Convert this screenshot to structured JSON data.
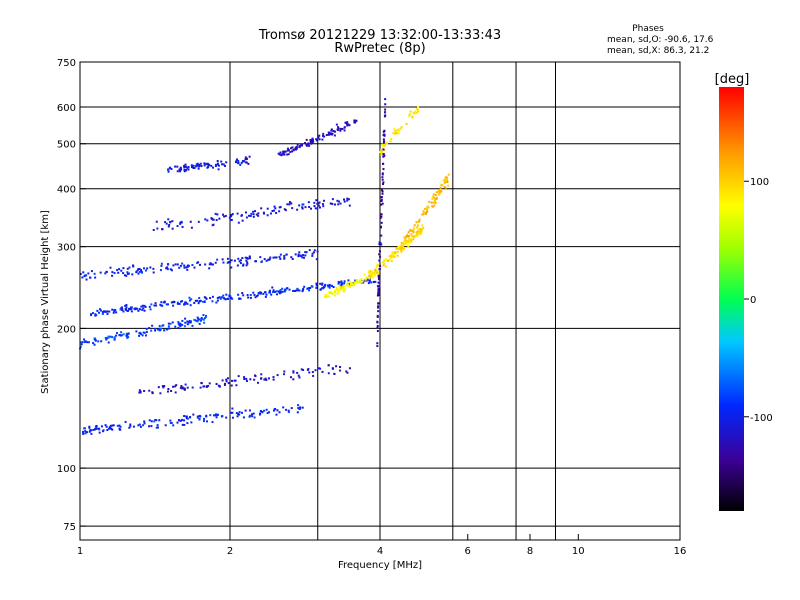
{
  "chart_data": {
    "type": "scatter",
    "title": "Tromsø 20121229 13:32:00-13:33:43",
    "subtitle": "RwPretec (8p)",
    "xlabel": "Frequency [MHz]",
    "ylabel": "Stationary phase Virtual Height [km]",
    "x_scale": "log",
    "y_scale": "log",
    "xlim": [
      1,
      16
    ],
    "ylim": [
      70,
      750
    ],
    "x_ticks": [
      1,
      2,
      4,
      6,
      8,
      10,
      16
    ],
    "x_tick_labels": [
      "1",
      "2",
      "4",
      "6",
      "8",
      "10",
      "16"
    ],
    "x_grid": [
      1,
      2,
      3,
      4,
      5.6,
      7.5,
      9,
      16
    ],
    "y_ticks": [
      75,
      100,
      200,
      300,
      400,
      500,
      600,
      750
    ],
    "y_tick_labels": [
      "75",
      "100",
      "200",
      "300",
      "400",
      "500",
      "600",
      "750"
    ],
    "grid": true,
    "stats": {
      "heading": "Phases",
      "line_o": "mean, sd,O: -90.6, 17.6",
      "line_x": "mean, sd,X:  86.3, 21.2"
    },
    "colorbar": {
      "label": "[deg]",
      "min": -180,
      "max": 180,
      "ticks": [
        100,
        0,
        -100
      ],
      "tick_labels": [
        "100",
        "0",
        "-100"
      ]
    },
    "traces": [
      {
        "f0": 1.0,
        "f1": 1.8,
        "h0": 185,
        "h1": 210,
        "phase": -85,
        "n": 120,
        "spread": 0.035
      },
      {
        "f0": 1.05,
        "f1": 4.0,
        "h0": 215,
        "h1": 255,
        "phase": -95,
        "n": 260,
        "spread": 0.03
      },
      {
        "f0": 1.0,
        "f1": 3.0,
        "h0": 260,
        "h1": 290,
        "phase": -100,
        "n": 160,
        "spread": 0.04
      },
      {
        "f0": 1.4,
        "f1": 3.5,
        "h0": 330,
        "h1": 380,
        "phase": -110,
        "n": 120,
        "spread": 0.05
      },
      {
        "f0": 1.5,
        "f1": 2.2,
        "h0": 440,
        "h1": 460,
        "phase": -105,
        "n": 90,
        "spread": 0.03
      },
      {
        "f0": 2.5,
        "f1": 3.6,
        "h0": 470,
        "h1": 560,
        "phase": -120,
        "n": 110,
        "spread": 0.03
      },
      {
        "f0": 1.0,
        "f1": 2.8,
        "h0": 120,
        "h1": 135,
        "phase": -95,
        "n": 160,
        "spread": 0.04
      },
      {
        "f0": 1.3,
        "f1": 3.5,
        "h0": 145,
        "h1": 165,
        "phase": -115,
        "n": 110,
        "spread": 0.05
      },
      {
        "f0": 3.1,
        "f1": 4.0,
        "h0": 235,
        "h1": 265,
        "phase": 80,
        "n": 90,
        "spread": 0.025
      },
      {
        "f0": 3.8,
        "f1": 4.9,
        "h0": 260,
        "h1": 330,
        "phase": 95,
        "n": 130,
        "spread": 0.04
      },
      {
        "f0": 4.4,
        "f1": 5.5,
        "h0": 300,
        "h1": 420,
        "phase": 110,
        "n": 90,
        "spread": 0.05
      },
      {
        "f0": 4.0,
        "f1": 4.8,
        "h0": 480,
        "h1": 600,
        "phase": 90,
        "n": 50,
        "spread": 0.04
      },
      {
        "f0": 3.95,
        "f1": 4.1,
        "h0": 200,
        "h1": 600,
        "phase": -130,
        "n": 90,
        "spread": 0.2
      }
    ]
  }
}
